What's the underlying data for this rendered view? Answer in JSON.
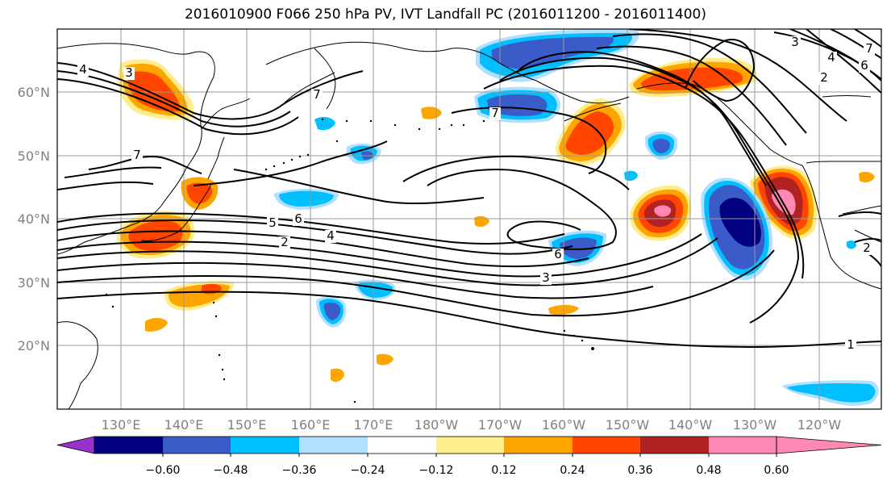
{
  "title": "2016010900 F066 250 hPa PV, IVT Landfall PC (2016011200 - 2016011400)",
  "map": {
    "lon_range": [
      120,
      -112
    ],
    "lat_range": [
      10,
      70
    ],
    "lon_ticks": [
      "130°E",
      "140°E",
      "150°E",
      "160°E",
      "170°E",
      "180°W",
      "170°W",
      "160°W",
      "150°W",
      "140°W",
      "130°W",
      "120°W"
    ],
    "lat_ticks": [
      "20°N",
      "30°N",
      "40°N",
      "50°N",
      "60°N"
    ],
    "grid": true,
    "contour_labels": [
      "4",
      "3",
      "7",
      "7",
      "7",
      "5",
      "6",
      "2",
      "4",
      "6",
      "3",
      "1",
      "3",
      "4",
      "7",
      "2",
      "6",
      "2"
    ]
  },
  "colorbar": {
    "ticks": [
      "−0.60",
      "−0.48",
      "−0.36",
      "−0.24",
      "−0.12",
      "0.12",
      "0.24",
      "0.36",
      "0.48",
      "0.60"
    ],
    "colors": [
      "#9932CC",
      "#000080",
      "#3A5BC8",
      "#00BFFF",
      "#B0E0FF",
      "#FFFFFF",
      "#FFEC8B",
      "#FFA500",
      "#FF4500",
      "#B22222",
      "#FF88B4"
    ],
    "under_color": "#9932CC",
    "over_color": "#FF88B4"
  }
}
